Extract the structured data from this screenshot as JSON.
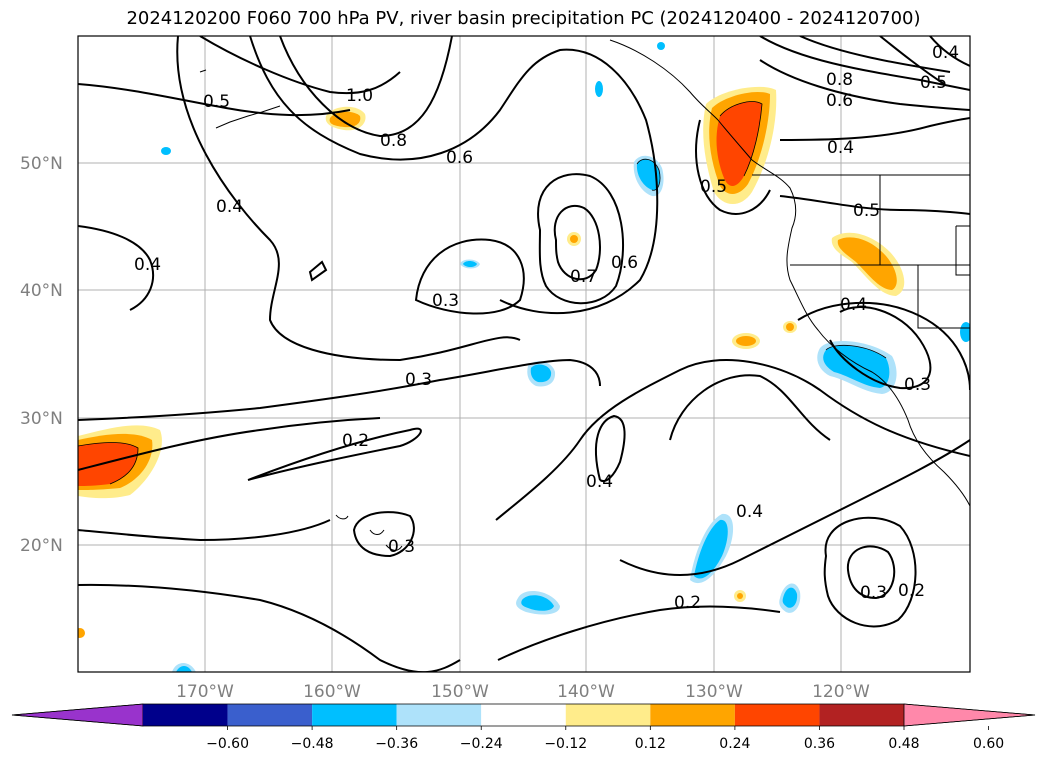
{
  "title": "2024120200 F060 700 hPa PV, river basin precipitation PC (2024120400 - 2024120700)",
  "map": {
    "lat_labels": [
      "50°N",
      "40°N",
      "30°N",
      "20°N"
    ],
    "lon_labels": [
      "170°W",
      "160°W",
      "150°W",
      "140°W",
      "130°W",
      "120°W"
    ],
    "contour_labels": [
      "0.5",
      "1.0",
      "0.8",
      "0.6",
      "0.4",
      "0.4",
      "0.3",
      "0.7",
      "0.6",
      "0.5",
      "0.4",
      "0.5",
      "0.4",
      "0.3",
      "0.2",
      "0.4",
      "0.3",
      "0.4",
      "0.2",
      "0.3",
      "0.2",
      "0.8",
      "0.6",
      "0.5",
      "0.4"
    ]
  },
  "colorbar": {
    "tick_labels": [
      "−0.60",
      "−0.48",
      "−0.36",
      "−0.24",
      "−0.12",
      "0.12",
      "0.24",
      "0.36",
      "0.48",
      "0.60"
    ],
    "colors": [
      "#9933cc",
      "#00008b",
      "#3a5fcd",
      "#00bfff",
      "#aee2fa",
      "#ffffff",
      "#ffec8b",
      "#ffa500",
      "#ff4500",
      "#b22222",
      "#ff88aa"
    ]
  }
}
